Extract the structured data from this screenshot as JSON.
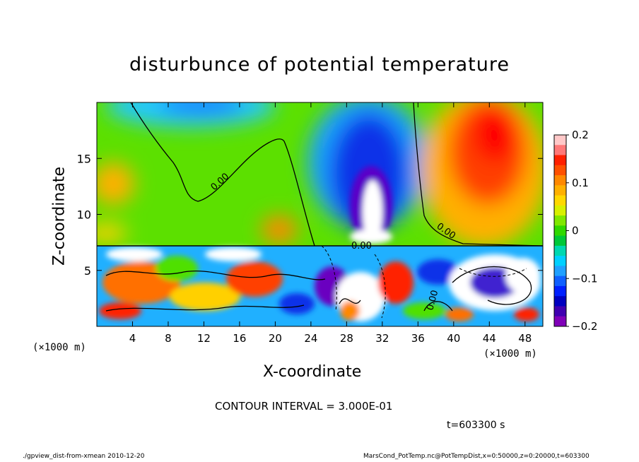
{
  "chart_data": {
    "type": "heatmap",
    "title": "disturbunce of potential temperature",
    "xlabel": "X-coordinate",
    "ylabel": "Z-coordinate",
    "x_unit": "(×1000 m)",
    "y_unit": "(×1000 m)",
    "xlim": [
      0,
      50
    ],
    "ylim": [
      0,
      20
    ],
    "x_ticks": [
      4,
      8,
      12,
      16,
      20,
      24,
      28,
      32,
      36,
      40,
      44,
      48
    ],
    "y_ticks": [
      5,
      10,
      15
    ],
    "colorbar": {
      "range": [
        -0.2,
        0.2
      ],
      "ticks": [
        0.2,
        0.1,
        0,
        -0.1,
        -0.2
      ],
      "tick_labels": [
        "0.2",
        "0.1",
        "0",
        "−0.1",
        "−0.2"
      ]
    },
    "contour_label": "0.00",
    "colors": {
      "negative_max": "#7a00a8",
      "negative": "#0033ff",
      "neutral": "#55e000",
      "positive": "#ff2800",
      "positive_max": "#ff9f9f"
    }
  },
  "annotations": {
    "contour_interval": "CONTOUR INTERVAL = 3.000E-01",
    "time": "t=603300 s",
    "footer_left": "./gpview_dist-from-xmean  2010-12-20",
    "footer_right": "MarsCond_PotTemp.nc@PotTempDist,x=0:50000,z=0:20000,t=603300"
  }
}
